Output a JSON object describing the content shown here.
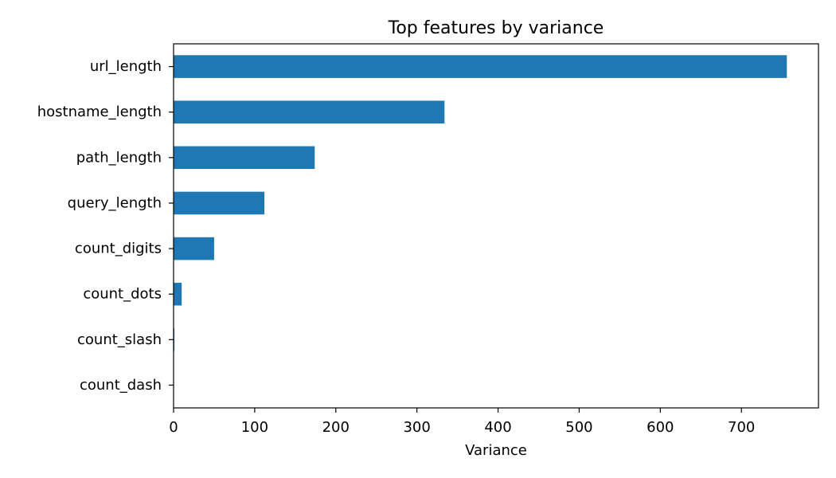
{
  "chart_data": {
    "type": "bar",
    "orientation": "horizontal",
    "title": "Top features by variance",
    "xlabel": "Variance",
    "ylabel": "",
    "categories": [
      "url_length",
      "hostname_length",
      "path_length",
      "query_length",
      "count_digits",
      "count_dots",
      "count_slash",
      "count_dash"
    ],
    "values": [
      756,
      334,
      174,
      112,
      50,
      10,
      1,
      0.5
    ],
    "xlim": [
      0,
      795
    ],
    "xticks": [
      0,
      100,
      200,
      300,
      400,
      500,
      600,
      700
    ],
    "grid": false,
    "color": "#1f77b4"
  }
}
